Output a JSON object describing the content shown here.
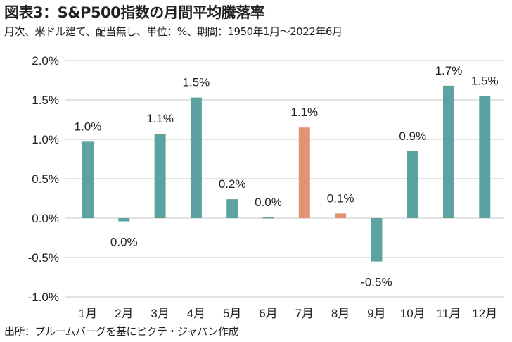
{
  "title": "図表3：S&P500指数の月間平均騰落率",
  "subtitle": "月次、米ドル建て、配当無し、単位：%、期間：1950年1月～2022年6月",
  "source": "出所：ブルームバーグを基にピクテ・ジャパン作成",
  "colors": {
    "default": "#5ba3a1",
    "highlight": "#e29472",
    "grid": "#d9d9d9"
  },
  "chart_data": {
    "type": "bar",
    "title": "図表3：S&P500指数の月間平均騰落率",
    "xlabel": "",
    "ylabel": "%",
    "ylim": [
      -1.0,
      2.0
    ],
    "yticks": [
      2.0,
      1.5,
      1.0,
      0.5,
      0.0,
      -0.5,
      -1.0
    ],
    "ytick_labels": [
      "2.0%",
      "1.5%",
      "1.0%",
      "0.5%",
      "0.0%",
      "-0.5%",
      "-1.0%"
    ],
    "grid": true,
    "categories": [
      "1月",
      "2月",
      "3月",
      "4月",
      "5月",
      "6月",
      "7月",
      "8月",
      "9月",
      "10月",
      "11月",
      "12月"
    ],
    "values": [
      0.97,
      -0.04,
      1.07,
      1.53,
      0.24,
      0.01,
      1.15,
      0.06,
      -0.55,
      0.85,
      1.68,
      1.55
    ],
    "data_labels": [
      "1.0%",
      "0.0%",
      "1.1%",
      "1.5%",
      "0.2%",
      "0.0%",
      "1.1%",
      "0.1%",
      "-0.5%",
      "0.9%",
      "1.7%",
      "1.5%"
    ],
    "highlighted": [
      "7月",
      "8月"
    ]
  }
}
